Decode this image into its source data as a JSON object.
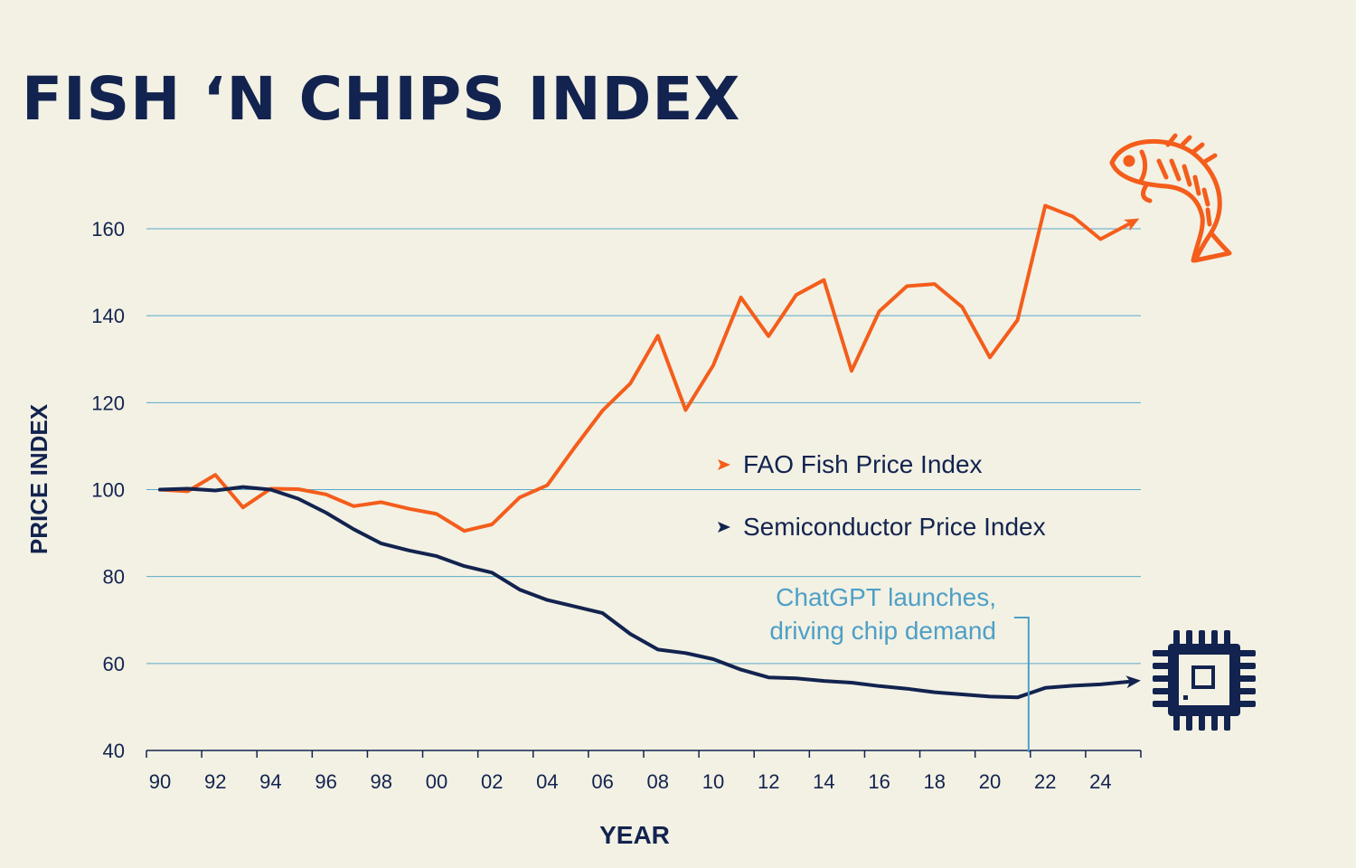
{
  "colors": {
    "background": "#f2f1e4",
    "fish": "#f45d1b",
    "semi": "#13234f",
    "grid": "#5aa8c8",
    "annotation": "#4f9fc6"
  },
  "icons": {
    "fish": "fish-icon",
    "chip": "microchip-icon"
  },
  "chart_data": {
    "type": "line",
    "title": "FISH ‘N CHIPS INDEX",
    "xlabel": "YEAR",
    "ylabel": "PRICE INDEX",
    "xlim": [
      1990,
      2025
    ],
    "ylim": [
      40,
      160
    ],
    "yticks": [
      40,
      60,
      80,
      100,
      120,
      140,
      160
    ],
    "grid": true,
    "legend_position": "center-right",
    "x": [
      1990,
      1991,
      1992,
      1993,
      1994,
      1995,
      1996,
      1997,
      1998,
      1999,
      2000,
      2001,
      2002,
      2003,
      2004,
      2005,
      2006,
      2007,
      2008,
      2009,
      2010,
      2011,
      2012,
      2013,
      2014,
      2015,
      2016,
      2017,
      2018,
      2019,
      2020,
      2021,
      2022,
      2023,
      2024,
      2025
    ],
    "xticklabels": [
      "90",
      "92",
      "94",
      "96",
      "98",
      "00",
      "02",
      "04",
      "06",
      "08",
      "10",
      "12",
      "14",
      "16",
      "18",
      "20",
      "22",
      "24"
    ],
    "series": [
      {
        "name": "FAO Fish Price Index",
        "color": "#f45d1b",
        "values": [
          100,
          99.6,
          103.4,
          95.9,
          100.2,
          100.1,
          98.9,
          96.2,
          97.1,
          95.6,
          94.4,
          90.5,
          92.0,
          98.2,
          101.0,
          109.8,
          118.2,
          124.4,
          135.4,
          118.3,
          128.6,
          144.2,
          135.3,
          144.8,
          148.2,
          127.3,
          141.0,
          146.8,
          147.3,
          142.0,
          130.4,
          139.0,
          165.3,
          162.8,
          157.6,
          161.0
        ]
      },
      {
        "name": "Semiconductor Price Index",
        "color": "#13234f",
        "values": [
          100,
          100.2,
          99.8,
          100.6,
          100.0,
          97.9,
          94.7,
          90.9,
          87.6,
          86.0,
          84.7,
          82.4,
          80.9,
          77.0,
          74.6,
          73.1,
          71.6,
          66.8,
          63.2,
          62.4,
          61.0,
          58.6,
          56.8,
          56.6,
          56.0,
          55.6,
          54.8,
          54.2,
          53.4,
          52.9,
          52.4,
          52.2,
          54.4,
          54.9,
          55.2,
          55.8
        ]
      }
    ],
    "annotations": [
      {
        "text_lines": [
          "ChatGPT launches,",
          "driving chip demand"
        ],
        "x": 2021.4
      }
    ]
  }
}
